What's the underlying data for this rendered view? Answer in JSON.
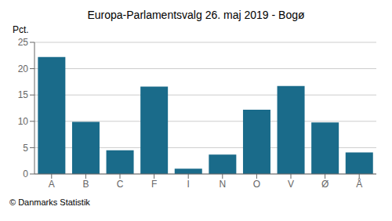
{
  "chart_data": {
    "type": "bar",
    "title": "Europa-Parlamentsvalg 26. maj 2019 - Bogø",
    "categories": [
      "A",
      "B",
      "C",
      "F",
      "I",
      "N",
      "O",
      "V",
      "Ø",
      "Å"
    ],
    "values": [
      22.2,
      9.9,
      4.5,
      16.6,
      1.0,
      3.7,
      12.2,
      16.7,
      9.8,
      4.1
    ],
    "color": "#1a6b8a",
    "ylabel": "Pct.",
    "ylim": [
      0,
      25
    ],
    "yticks": [
      0,
      5,
      10,
      15,
      20,
      25
    ],
    "grid": true,
    "footer": "© Danmarks Statistik"
  }
}
